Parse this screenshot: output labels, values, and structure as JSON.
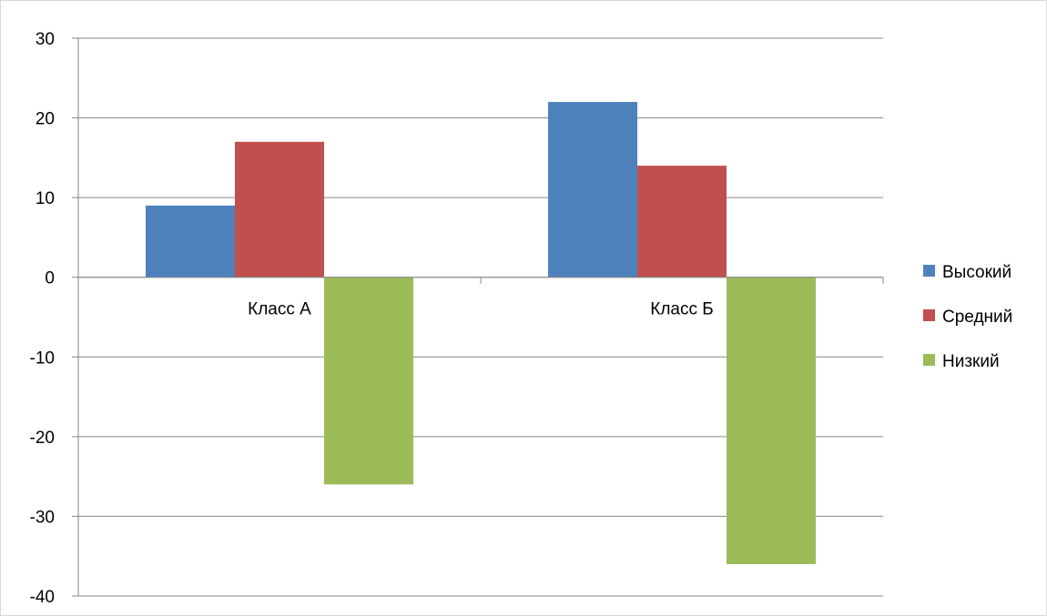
{
  "chart_data": {
    "type": "bar",
    "categories": [
      "Класс А",
      "Класс Б"
    ],
    "series": [
      {
        "name": "Высокий",
        "values": [
          9,
          22
        ],
        "color": "#4F81BD"
      },
      {
        "name": "Средний",
        "values": [
          17,
          14
        ],
        "color": "#C0504D"
      },
      {
        "name": "Низкий",
        "values": [
          -26,
          -36
        ],
        "color": "#9BBB59"
      }
    ],
    "y_ticks": [
      "30",
      "20",
      "10",
      "0",
      "-10",
      "-20",
      "-30",
      "-40"
    ],
    "ylim": [
      -40,
      30
    ],
    "grid": true,
    "legend_position": "right",
    "axis_color": "#868686",
    "grid_color": "#868686"
  }
}
